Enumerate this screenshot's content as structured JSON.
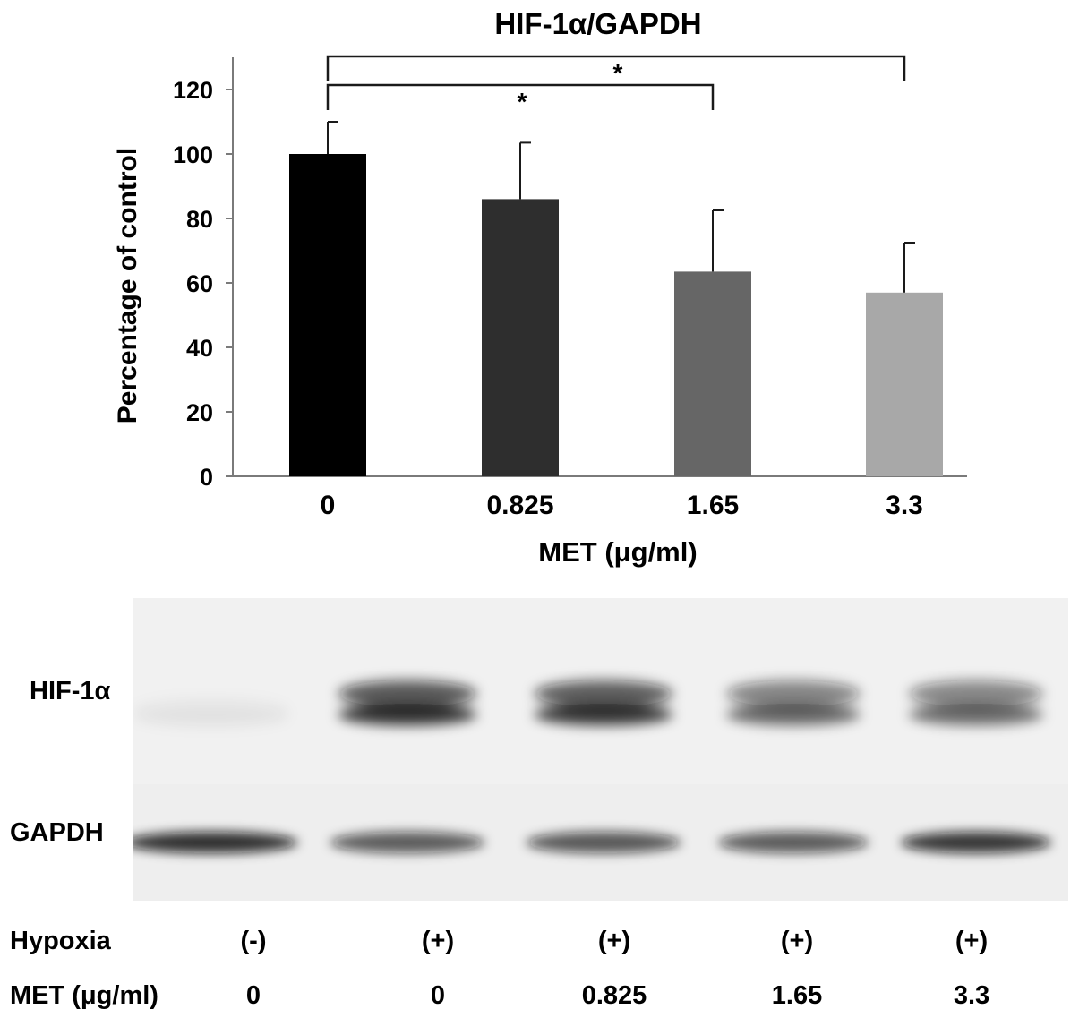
{
  "chart_data": {
    "type": "bar",
    "title": "HIF-1α/GAPDH",
    "xlabel": "MET (μg/ml)",
    "ylabel": "Percentage of control",
    "categories": [
      "0",
      "0.825",
      "1.65",
      "3.3"
    ],
    "series": [
      {
        "values": [
          100,
          86,
          63.5,
          57
        ],
        "errors": [
          10,
          17.5,
          19,
          15.5
        ],
        "colors": [
          "#000000",
          "#2e2e2e",
          "#666666",
          "#a8a8a8"
        ]
      }
    ],
    "ylim": [
      0,
      130
    ],
    "yticks": [
      0,
      20,
      40,
      60,
      80,
      100,
      120
    ],
    "significance": [
      {
        "from": "0",
        "to": "1.65",
        "label": "*"
      },
      {
        "from": "0",
        "to": "3.3",
        "label": "*"
      }
    ],
    "grid": false,
    "legend": "none"
  },
  "blot": {
    "rows": [
      {
        "label": "HIF-1α",
        "intensities": [
          0.04,
          0.8,
          0.78,
          0.58,
          0.56
        ]
      },
      {
        "label": "GAPDH",
        "intensities": [
          0.85,
          0.66,
          0.68,
          0.66,
          0.82
        ]
      }
    ],
    "conditions": [
      {
        "label": "Hypoxia",
        "values": [
          "(-)",
          "(+)",
          "(+)",
          "(+)",
          "(+)"
        ]
      },
      {
        "label": "MET (μg/ml)",
        "values": [
          "0",
          "0",
          "0.825",
          "1.65",
          "3.3"
        ]
      }
    ]
  }
}
